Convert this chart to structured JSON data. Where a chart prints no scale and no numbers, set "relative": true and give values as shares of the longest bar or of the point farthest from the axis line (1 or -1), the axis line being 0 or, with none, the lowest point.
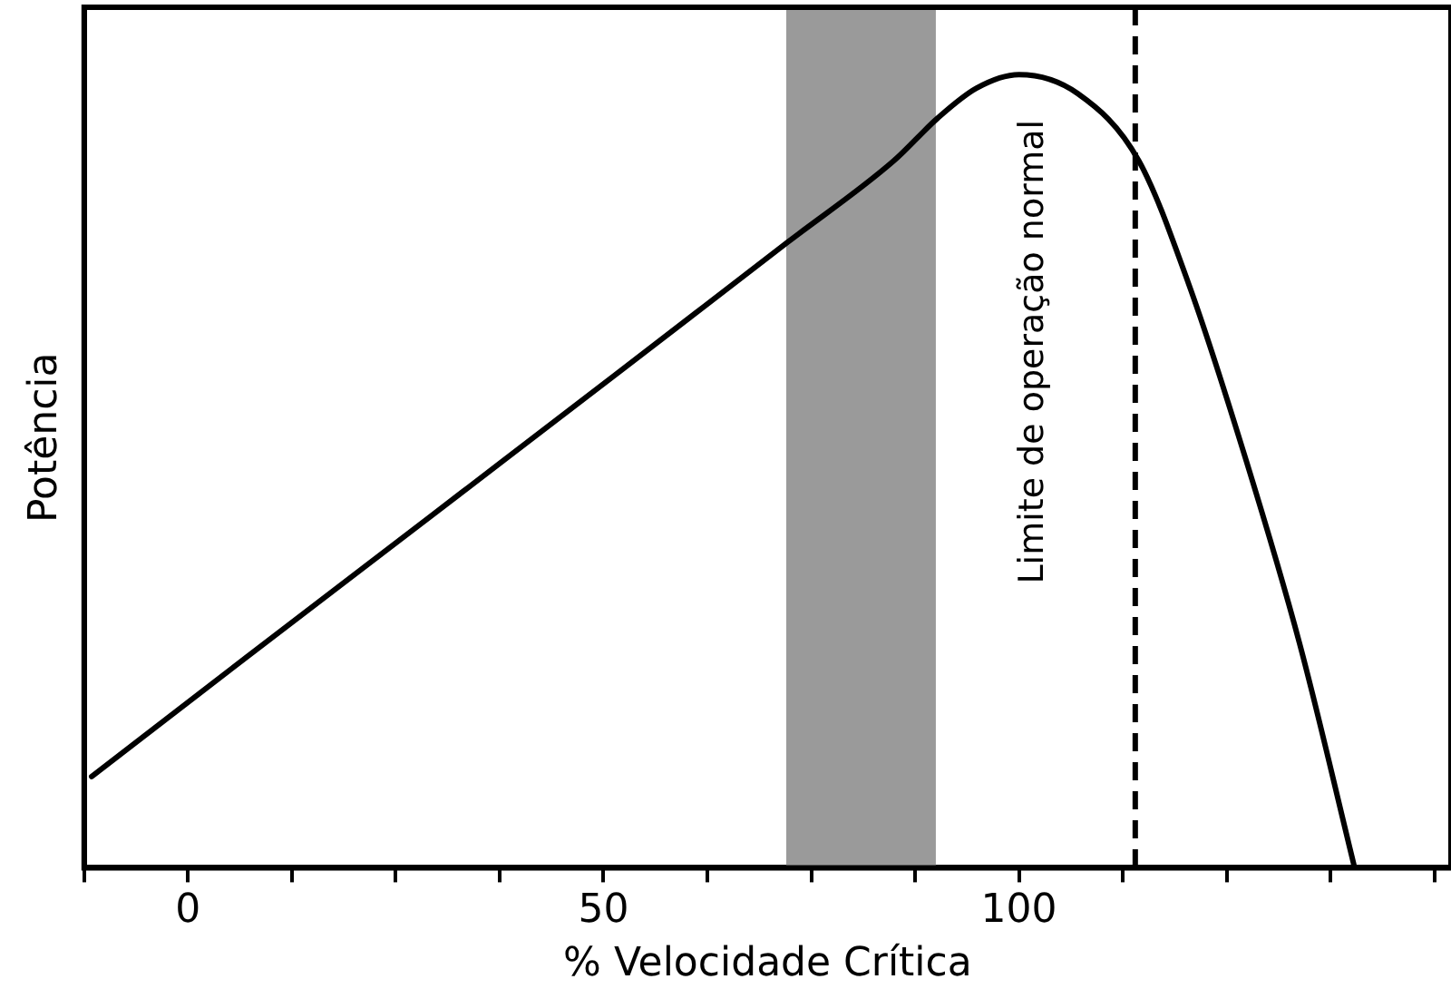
{
  "chart_data": {
    "type": "line",
    "xlabel": "% Velocidade Crítica",
    "ylabel": "Potência",
    "relative": true,
    "xlim": [
      -12.5,
      152
    ],
    "xticks": [
      {
        "value": -12.5,
        "label": null
      },
      0,
      {
        "value": 12.5,
        "label": null
      },
      {
        "value": 25,
        "label": null
      },
      {
        "value": 37.5,
        "label": null
      },
      50,
      {
        "value": 62.5,
        "label": null
      },
      {
        "value": 75,
        "label": null
      },
      {
        "value": 87.5,
        "label": null
      },
      100,
      {
        "value": 112.5,
        "label": null
      },
      {
        "value": 125,
        "label": null
      },
      {
        "value": 137.5,
        "label": null
      },
      {
        "value": 150,
        "label": null
      }
    ],
    "series": [
      {
        "color": "#000000",
        "x": [
          -11.6,
          7.1,
          29.3,
          51.6,
          72.2,
          84.9,
          90.2,
          94.9,
          100,
          107.1,
          114.4,
          120.4,
          127.1,
          133.8,
          140.4
        ],
        "values": [
          0.115,
          0.266,
          0.444,
          0.623,
          0.789,
          0.891,
          0.945,
          0.983,
          1,
          0.976,
          0.892,
          0.737,
          0.522,
          0.282,
          0
        ]
      }
    ],
    "bands": [
      {
        "axis": "x",
        "from": 72,
        "to": 90,
        "color": "#9a9a9a"
      }
    ],
    "ref_lines": [
      {
        "axis": "x",
        "value": 114,
        "label": "Limite de operação normal",
        "line_style": "dashed",
        "color": "#000000"
      }
    ],
    "grid": false,
    "legend": false,
    "marker": "none",
    "line_style": "solid"
  }
}
